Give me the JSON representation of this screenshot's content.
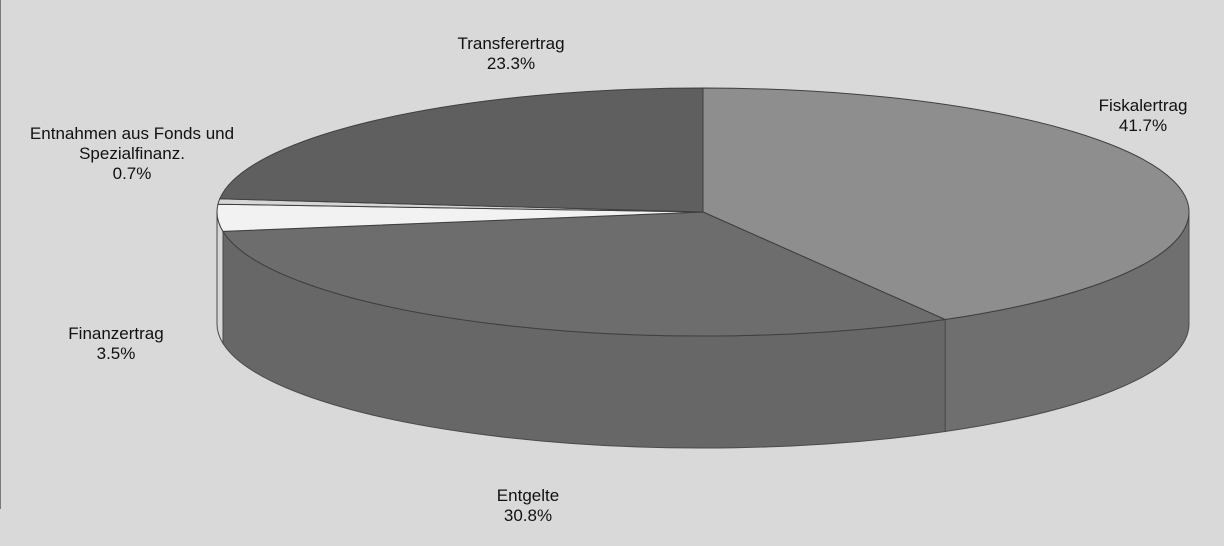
{
  "chart_data": {
    "type": "pie",
    "three_d": true,
    "slices": [
      {
        "label": "Fiskalertrag",
        "value": 41.7,
        "display": "41.7%",
        "color": "#8e8e8e",
        "side_color": "#6f6f6f"
      },
      {
        "label": "Entgelte",
        "value": 30.8,
        "display": "30.8%",
        "color": "#6d6d6d",
        "side_color": "#676767"
      },
      {
        "label": "Finanzertrag",
        "value": 3.5,
        "display": "3.5%",
        "color": "#f2f2f2",
        "side_color": "#d7d7d7"
      },
      {
        "label": "Entnahmen aus Fonds und\nSpezialfinanz.",
        "value": 0.7,
        "display": "0.7%",
        "color": "#d6d6d6",
        "side_color": "#bdbdbd"
      },
      {
        "label": "Transferertrag",
        "value": 23.3,
        "display": "23.3%",
        "color": "#5f5f5f",
        "side_color": "#555555"
      }
    ],
    "background": "#d9d9d9"
  }
}
